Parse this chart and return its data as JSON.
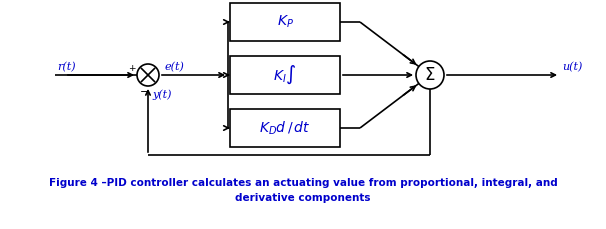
{
  "bg_color": "#ffffff",
  "line_color": "#000000",
  "text_color": "#0000cc",
  "caption_color": "#0000cc",
  "fig_width": 6.06,
  "fig_height": 2.29,
  "caption_line1": "Figure 4 –PID controller calculates an actuating value from proportional, integral, and",
  "caption_line2": "derivative components",
  "box_kp_label": "$K_P$",
  "box_ki_label": "$K_I\\int$",
  "box_kd_label": "$K_D d\\,/\\,dt$",
  "sum_label": "$\\Sigma$",
  "label_rt": "r(t)",
  "label_et": "e(t)",
  "label_yt": "y(t)",
  "label_ut": "u(t)",
  "plus_label": "+",
  "minus_label": "−"
}
